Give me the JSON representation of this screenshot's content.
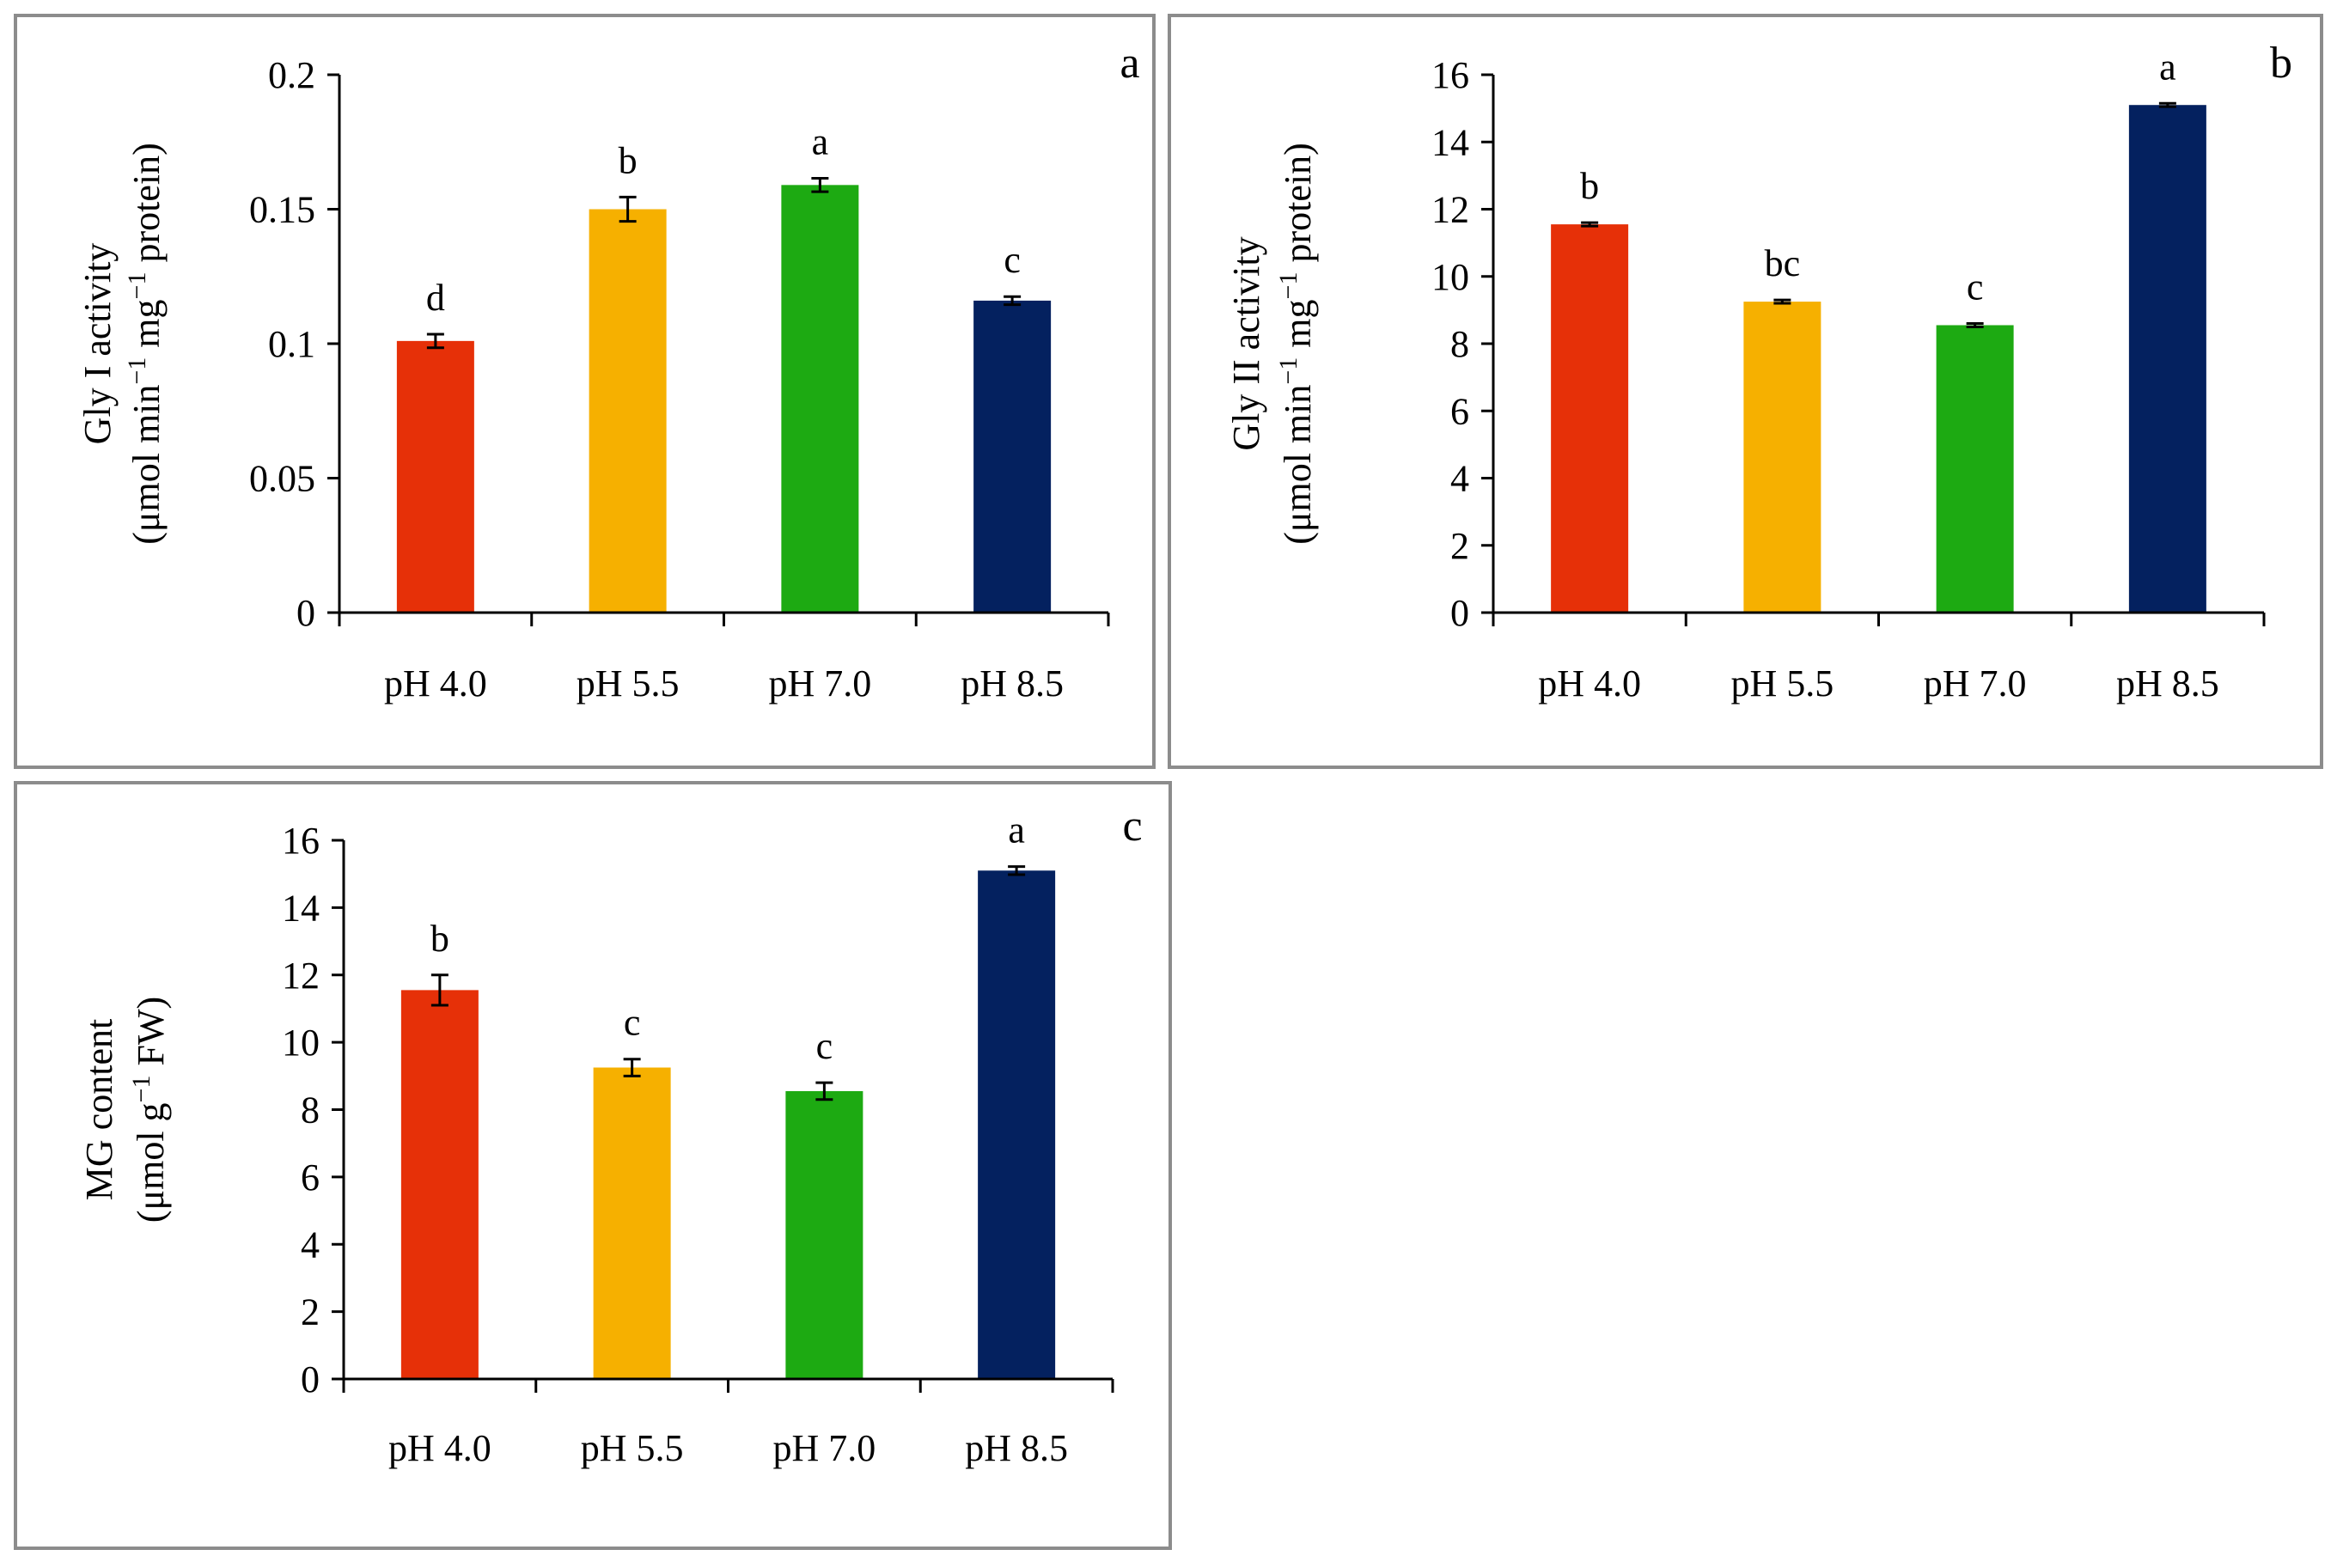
{
  "colors": {
    "pH 4.0": "#E63008",
    "pH 5.5": "#F6B000",
    "pH 7.0": "#1DAA12",
    "pH 8.5": "#04215F",
    "panel_border": "#8C8C8C"
  },
  "chart_data": [
    {
      "type": "bar",
      "panel_label": "a",
      "title": "",
      "ylabel_line1": "Gly I activity",
      "ylabel_line2_parts": [
        "(μmol min",
        "−1",
        " mg",
        "−1",
        " protein)"
      ],
      "categories": [
        "pH 4.0",
        "pH 5.5",
        "pH 7.0",
        "pH 8.5"
      ],
      "values": [
        0.101,
        0.15,
        0.159,
        0.116
      ],
      "errors": [
        0.0025,
        0.0045,
        0.0025,
        0.0015
      ],
      "significance": [
        "d",
        "b",
        "a",
        "c"
      ],
      "ylim": [
        0,
        0.2
      ],
      "yticks": [
        0,
        0.05,
        0.1,
        0.15,
        0.2
      ],
      "ytick_labels": [
        "0",
        "0.05",
        "0.1",
        "0.15",
        "0.2"
      ]
    },
    {
      "type": "bar",
      "panel_label": "b",
      "title": "",
      "ylabel_line1": "Gly II activity",
      "ylabel_line2_parts": [
        "(μmol min",
        "−1",
        " mg",
        "−1",
        " protein)"
      ],
      "categories": [
        "pH 4.0",
        "pH 5.5",
        "pH 7.0",
        "pH 8.5"
      ],
      "values": [
        11.55,
        9.25,
        8.55,
        15.1
      ],
      "errors": [
        0.05,
        0.05,
        0.05,
        0.05
      ],
      "significance": [
        "b",
        "bc",
        "c",
        "a"
      ],
      "ylim": [
        0,
        16
      ],
      "yticks": [
        0,
        2,
        4,
        6,
        8,
        10,
        12,
        14,
        16
      ],
      "ytick_labels": [
        "0",
        "2",
        "4",
        "6",
        "8",
        "10",
        "12",
        "14",
        "16"
      ]
    },
    {
      "type": "bar",
      "panel_label": "c",
      "title": "",
      "ylabel_line1": "MG content",
      "ylabel_line2_parts": [
        "(μmol g",
        "−1",
        " FW)"
      ],
      "categories": [
        "pH 4.0",
        "pH 5.5",
        "pH 7.0",
        "pH 8.5"
      ],
      "values": [
        11.55,
        9.25,
        8.55,
        15.1
      ],
      "errors": [
        0.45,
        0.25,
        0.25,
        0.12
      ],
      "significance": [
        "b",
        "c",
        "c",
        "a"
      ],
      "ylim": [
        0,
        16
      ],
      "yticks": [
        0,
        2,
        4,
        6,
        8,
        10,
        12,
        14,
        16
      ],
      "ytick_labels": [
        "0",
        "2",
        "4",
        "6",
        "8",
        "10",
        "12",
        "14",
        "16"
      ]
    }
  ]
}
